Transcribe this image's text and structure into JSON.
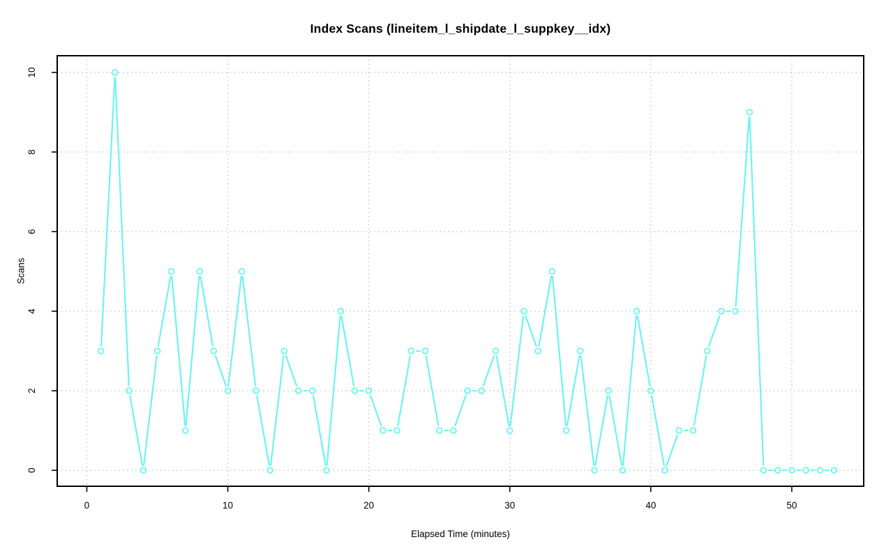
{
  "chart_data": {
    "type": "line",
    "title": "Index Scans (lineitem_l_shipdate_l_suppkey__idx)",
    "xlabel": "Elapsed Time (minutes)",
    "ylabel": "Scans",
    "x": [
      1,
      2,
      3,
      4,
      5,
      6,
      7,
      8,
      9,
      10,
      11,
      12,
      13,
      14,
      15,
      16,
      17,
      18,
      19,
      20,
      21,
      22,
      23,
      24,
      25,
      26,
      27,
      28,
      29,
      30,
      31,
      32,
      33,
      34,
      35,
      36,
      37,
      38,
      39,
      40,
      41,
      42,
      43,
      44,
      45,
      46,
      47,
      48,
      49,
      50,
      51,
      52,
      53
    ],
    "y": [
      3,
      10,
      2,
      0,
      3,
      5,
      1,
      5,
      3,
      2,
      5,
      2,
      0,
      3,
      2,
      2,
      0,
      4,
      2,
      2,
      1,
      1,
      3,
      3,
      1,
      1,
      2,
      2,
      3,
      1,
      4,
      3,
      5,
      1,
      3,
      0,
      2,
      0,
      4,
      2,
      0,
      1,
      1,
      3,
      4,
      4,
      9,
      0,
      0,
      0,
      0,
      0,
      0
    ],
    "x_ticks": [
      0,
      10,
      20,
      30,
      40,
      50
    ],
    "y_ticks": [
      0,
      2,
      4,
      6,
      8,
      10
    ],
    "xlim": [
      -2.1,
      55.1
    ],
    "ylim": [
      -0.4,
      10.42
    ],
    "grid": "dotted",
    "legend": "none",
    "marker": "open-circle",
    "colors": {
      "series": "#6EF2F2",
      "grid": "#C3C3C3",
      "axis": "#000000",
      "background": "#FFFFFF"
    }
  }
}
